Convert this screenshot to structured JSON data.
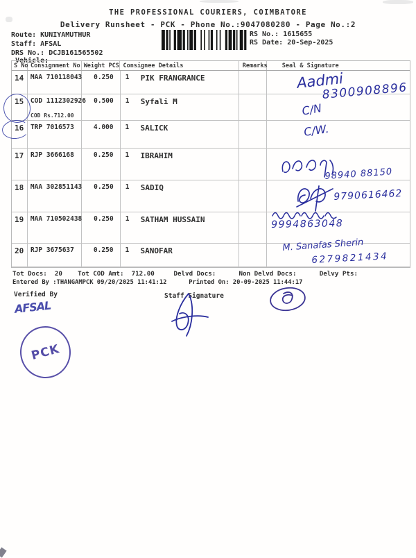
{
  "header": {
    "title": "THE PROFESSIONAL COURIERS, COIMBATORE",
    "subtitle": "Delivery Runsheet - PCK - Phone No.:9047080280 - Page No.:2"
  },
  "meta": {
    "route_label": "Route:",
    "route": "KUNIYAMUTHUR",
    "staff_label": "Staff:",
    "staff": "AFSAL",
    "drs_label": "DRS No.:",
    "drs": "DCJB161565502",
    "vehicle_label": "Vehicle:",
    "rs_no_label": "RS No.:",
    "rs_no": "1615655",
    "rs_date_label": "RS Date:",
    "rs_date": "20-Sep-2025"
  },
  "table": {
    "headers": {
      "s_no": "S No",
      "consignment": "Consignment No",
      "weight_pcs": "Weight PCS",
      "consignee": "Consignee Details",
      "remarks": "Remarks",
      "seal": "Seal & Signature"
    },
    "rows": [
      {
        "s_no": "14",
        "consignment": "MAA 710118043",
        "weight": "0.250",
        "pcs": "1",
        "consignee": "PIK FRANGRANCE",
        "note": "",
        "remarks": ""
      },
      {
        "s_no": "15",
        "consignment": "COD 1112302926",
        "weight": "0.500",
        "pcs": "1",
        "consignee": "Syfali M",
        "note": "COD Rs.712.00",
        "remarks": ""
      },
      {
        "s_no": "16",
        "consignment": "TRP 7016573",
        "weight": "4.000",
        "pcs": "1",
        "consignee": "SALICK",
        "note": "",
        "remarks": ""
      },
      {
        "s_no": "17",
        "consignment": "RJP 3666168",
        "weight": "0.250",
        "pcs": "1",
        "consignee": "IBRAHIM",
        "note": "",
        "remarks": ""
      },
      {
        "s_no": "18",
        "consignment": "MAA 302851143",
        "weight": "0.250",
        "pcs": "1",
        "consignee": "SADIQ",
        "note": "",
        "remarks": ""
      },
      {
        "s_no": "19",
        "consignment": "MAA 710502438",
        "weight": "0.250",
        "pcs": "1",
        "consignee": "SATHAM HUSSAIN",
        "note": "",
        "remarks": ""
      },
      {
        "s_no": "20",
        "consignment": "RJP 3675637",
        "weight": "0.250",
        "pcs": "1",
        "consignee": "SANOFAR",
        "note": "",
        "remarks": ""
      }
    ]
  },
  "handwriting": {
    "ink_color": "#2b2f9e",
    "row14_name": "Aadmi",
    "row14_phone": "8300908896",
    "row15_mark": "C/N",
    "row16_mark": "C/W.",
    "row17_phone": "98940 88150",
    "row18_phone": "9790616462",
    "row19_phone": "9994863048",
    "row20_name": "M. Sanafas Sherin",
    "row20_phone": "6279821434",
    "verified_signature": "AFSAL"
  },
  "summary": {
    "tot_docs_label": "Tot Docs:",
    "tot_docs": "20",
    "tot_cod_label": "Tot COD Amt:",
    "tot_cod": "712.00",
    "delvd_label": "Delvd Docs:",
    "non_delvd_label": "Non Delvd Docs:",
    "delvy_pts_label": "Delvy Pts:",
    "entered_by": "Entered By :THANGAMPCK 09/20/2025 11:41:12",
    "printed_on": "Printed On: 20-09-2025 11:44:17",
    "verified_by_label": "Verified By",
    "staff_signature_label": "Staff Signature"
  },
  "stamp": {
    "text": "PCK",
    "color": "#463da0"
  }
}
